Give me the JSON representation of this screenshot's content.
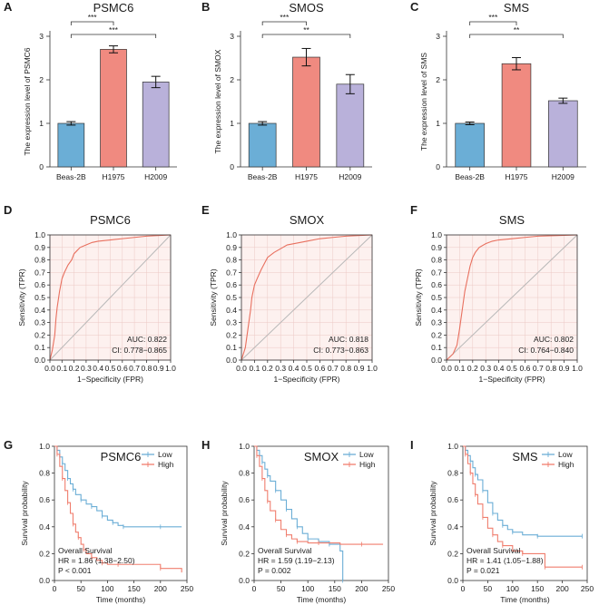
{
  "figure": {
    "panel_labels": [
      "A",
      "B",
      "C",
      "D",
      "E",
      "F",
      "G",
      "H",
      "I"
    ]
  },
  "chart_data": [
    {
      "id": "A",
      "type": "bar",
      "title": "PSMC6",
      "xlabel": "",
      "ylabel": "The expression level of PSMC6",
      "categories": [
        "Beas-2B",
        "H1975",
        "H2009"
      ],
      "values": [
        1.0,
        2.7,
        1.95
      ],
      "errors": [
        0.04,
        0.08,
        0.13
      ],
      "ylim": [
        0,
        3
      ],
      "yticks": [
        "0",
        "1",
        "2",
        "3"
      ],
      "colors": [
        "#6baed6",
        "#f08a80",
        "#b9b1da"
      ],
      "significance": [
        {
          "pair": [
            0,
            1
          ],
          "label": "***"
        },
        {
          "pair": [
            0,
            2
          ],
          "label": "***"
        }
      ]
    },
    {
      "id": "B",
      "type": "bar",
      "title": "SMOS",
      "xlabel": "",
      "ylabel": "The expression level of SMOX",
      "categories": [
        "Beas-2B",
        "H1975",
        "H2009"
      ],
      "values": [
        1.0,
        2.52,
        1.9
      ],
      "errors": [
        0.04,
        0.2,
        0.22
      ],
      "ylim": [
        0,
        3
      ],
      "yticks": [
        "0",
        "1",
        "2",
        "3"
      ],
      "colors": [
        "#6baed6",
        "#f08a80",
        "#b9b1da"
      ],
      "significance": [
        {
          "pair": [
            0,
            1
          ],
          "label": "***"
        },
        {
          "pair": [
            0,
            2
          ],
          "label": "**"
        }
      ]
    },
    {
      "id": "C",
      "type": "bar",
      "title": "SMS",
      "xlabel": "",
      "ylabel": "The expression level of SMS",
      "categories": [
        "Beas-2B",
        "H1975",
        "H2009"
      ],
      "values": [
        1.0,
        2.37,
        1.52
      ],
      "errors": [
        0.03,
        0.14,
        0.06
      ],
      "ylim": [
        0,
        3
      ],
      "yticks": [
        "0",
        "1",
        "2",
        "3"
      ],
      "colors": [
        "#6baed6",
        "#f08a80",
        "#b9b1da"
      ],
      "significance": [
        {
          "pair": [
            0,
            1
          ],
          "label": "***"
        },
        {
          "pair": [
            0,
            2
          ],
          "label": "**"
        }
      ]
    },
    {
      "id": "D",
      "type": "line",
      "subtype": "roc",
      "title": "PSMC6",
      "xlabel": "1−Specificity (FPR)",
      "ylabel": "Sensitivity (TPR)",
      "xlim": [
        0,
        1
      ],
      "ylim": [
        0,
        1
      ],
      "ticks": [
        "0.0",
        "0.1",
        "0.2",
        "0.3",
        "0.4",
        "0.5",
        "0.6",
        "0.7",
        "0.8",
        "0.9",
        "1.0"
      ],
      "auc_text": "AUC: 0.822",
      "ci_text": "CI: 0.778−0.865",
      "x": [
        0,
        0.02,
        0.04,
        0.05,
        0.06,
        0.08,
        0.1,
        0.12,
        0.15,
        0.18,
        0.2,
        0.22,
        0.25,
        0.3,
        0.35,
        0.4,
        0.5,
        0.6,
        0.7,
        0.8,
        1.0
      ],
      "y": [
        0,
        0.08,
        0.2,
        0.33,
        0.42,
        0.55,
        0.65,
        0.7,
        0.76,
        0.8,
        0.85,
        0.87,
        0.9,
        0.92,
        0.94,
        0.95,
        0.96,
        0.97,
        0.98,
        0.99,
        1.0
      ]
    },
    {
      "id": "E",
      "type": "line",
      "subtype": "roc",
      "title": "SMOX",
      "xlabel": "1−Specificity (FPR)",
      "ylabel": "Sensitivity (TPR)",
      "xlim": [
        0,
        1
      ],
      "ylim": [
        0,
        1
      ],
      "ticks": [
        "0.0",
        "0.1",
        "0.2",
        "0.3",
        "0.4",
        "0.5",
        "0.6",
        "0.7",
        "0.8",
        "0.9",
        "1.0"
      ],
      "auc_text": "AUC: 0.818",
      "ci_text": "CI: 0.773−0.863",
      "x": [
        0,
        0.03,
        0.05,
        0.07,
        0.08,
        0.1,
        0.12,
        0.15,
        0.18,
        0.2,
        0.25,
        0.3,
        0.35,
        0.4,
        0.5,
        0.6,
        0.7,
        0.8,
        1.0
      ],
      "y": [
        0,
        0.1,
        0.25,
        0.4,
        0.5,
        0.6,
        0.65,
        0.72,
        0.78,
        0.82,
        0.86,
        0.89,
        0.92,
        0.93,
        0.95,
        0.97,
        0.98,
        0.99,
        1.0
      ]
    },
    {
      "id": "F",
      "type": "line",
      "subtype": "roc",
      "title": "SMS",
      "xlabel": "1−Specificity (FPR)",
      "ylabel": "Sensitivity (TPR)",
      "xlim": [
        0,
        1
      ],
      "ylim": [
        0,
        1
      ],
      "ticks": [
        "0.0",
        "0.1",
        "0.2",
        "0.3",
        "0.4",
        "0.5",
        "0.6",
        "0.7",
        "0.8",
        "0.9",
        "1.0"
      ],
      "auc_text": "AUC: 0.802",
      "ci_text": "CI: 0.764−0.840",
      "x": [
        0,
        0.05,
        0.08,
        0.1,
        0.12,
        0.14,
        0.16,
        0.18,
        0.2,
        0.22,
        0.25,
        0.3,
        0.35,
        0.4,
        0.5,
        0.6,
        0.7,
        0.85,
        1.0
      ],
      "y": [
        0,
        0.05,
        0.12,
        0.25,
        0.4,
        0.55,
        0.65,
        0.75,
        0.82,
        0.86,
        0.9,
        0.93,
        0.95,
        0.96,
        0.97,
        0.98,
        0.99,
        0.995,
        1.0
      ]
    },
    {
      "id": "G",
      "type": "line",
      "subtype": "survival",
      "title": "PSMC6",
      "xlabel": "Time (months)",
      "ylabel": "Survival probability",
      "xlim": [
        0,
        250
      ],
      "ylim": [
        0,
        1
      ],
      "xticks": [
        "0",
        "50",
        "100",
        "150",
        "200",
        "250"
      ],
      "yticks": [
        "0.0",
        "0.2",
        "0.4",
        "0.6",
        "0.8",
        "1.0"
      ],
      "legend": [
        "Low",
        "High"
      ],
      "overall_label": "Overall Survival",
      "hr_text": "HR = 1.86 (1.38−2.50)",
      "p_text": "P < 0.001",
      "series": [
        {
          "name": "Low",
          "color": "#6baed6",
          "x": [
            0,
            5,
            10,
            15,
            20,
            25,
            30,
            35,
            40,
            50,
            60,
            70,
            80,
            90,
            100,
            110,
            120,
            130,
            150,
            200,
            240
          ],
          "y": [
            1.0,
            0.97,
            0.92,
            0.87,
            0.82,
            0.76,
            0.72,
            0.68,
            0.64,
            0.6,
            0.57,
            0.55,
            0.52,
            0.48,
            0.45,
            0.43,
            0.41,
            0.4,
            0.4,
            0.4,
            0.4
          ]
        },
        {
          "name": "High",
          "color": "#f07e6e",
          "x": [
            0,
            5,
            10,
            15,
            20,
            25,
            30,
            35,
            40,
            45,
            50,
            55,
            60,
            70,
            80,
            90,
            100,
            120,
            160,
            200,
            240
          ],
          "y": [
            1.0,
            0.94,
            0.85,
            0.76,
            0.67,
            0.58,
            0.5,
            0.42,
            0.36,
            0.32,
            0.27,
            0.23,
            0.2,
            0.17,
            0.15,
            0.13,
            0.12,
            0.12,
            0.12,
            0.09,
            0.06
          ]
        }
      ]
    },
    {
      "id": "H",
      "type": "line",
      "subtype": "survival",
      "title": "SMOX",
      "xlabel": "Time (months)",
      "ylabel": "Survival probability",
      "xlim": [
        0,
        250
      ],
      "ylim": [
        0,
        1
      ],
      "xticks": [
        "0",
        "50",
        "100",
        "150",
        "200",
        "250"
      ],
      "yticks": [
        "0.0",
        "0.2",
        "0.4",
        "0.6",
        "0.8",
        "1.0"
      ],
      "legend": [
        "Low",
        "High"
      ],
      "overall_label": "Overall Survival",
      "hr_text": "HR = 1.59 (1.19−2.13)",
      "p_text": "P = 0.002",
      "series": [
        {
          "name": "Low",
          "color": "#6baed6",
          "x": [
            0,
            5,
            10,
            15,
            20,
            25,
            30,
            40,
            50,
            60,
            70,
            80,
            90,
            100,
            120,
            140,
            160,
            165
          ],
          "y": [
            1.0,
            0.97,
            0.93,
            0.88,
            0.83,
            0.78,
            0.74,
            0.67,
            0.6,
            0.53,
            0.46,
            0.4,
            0.35,
            0.31,
            0.29,
            0.27,
            0.22,
            0.0
          ]
        },
        {
          "name": "High",
          "color": "#f07e6e",
          "x": [
            0,
            5,
            10,
            15,
            20,
            25,
            30,
            40,
            50,
            60,
            70,
            80,
            100,
            120,
            160,
            200,
            240
          ],
          "y": [
            1.0,
            0.93,
            0.85,
            0.76,
            0.67,
            0.59,
            0.52,
            0.45,
            0.38,
            0.34,
            0.31,
            0.29,
            0.28,
            0.28,
            0.27,
            0.27,
            0.27
          ]
        }
      ]
    },
    {
      "id": "I",
      "type": "line",
      "subtype": "survival",
      "title": "SMS",
      "xlabel": "Time (months)",
      "ylabel": "Survival probability",
      "xlim": [
        0,
        250
      ],
      "ylim": [
        0,
        1
      ],
      "xticks": [
        "0",
        "50",
        "100",
        "150",
        "200",
        "250"
      ],
      "yticks": [
        "0.0",
        "0.2",
        "0.4",
        "0.6",
        "0.8",
        "1.0"
      ],
      "legend": [
        "Low",
        "High"
      ],
      "overall_label": "Overall Survival",
      "hr_text": "HR = 1.41 (1.05−1.88)",
      "p_text": "P = 0.021",
      "series": [
        {
          "name": "Low",
          "color": "#6baed6",
          "x": [
            0,
            5,
            10,
            15,
            20,
            25,
            30,
            40,
            50,
            60,
            70,
            80,
            90,
            100,
            120,
            150,
            200,
            240
          ],
          "y": [
            1.0,
            0.97,
            0.93,
            0.89,
            0.84,
            0.79,
            0.75,
            0.67,
            0.58,
            0.5,
            0.45,
            0.41,
            0.38,
            0.36,
            0.34,
            0.33,
            0.33,
            0.33
          ]
        },
        {
          "name": "High",
          "color": "#f07e6e",
          "x": [
            0,
            5,
            10,
            15,
            20,
            25,
            30,
            40,
            50,
            60,
            70,
            80,
            100,
            120,
            160,
            165,
            200,
            240
          ],
          "y": [
            1.0,
            0.94,
            0.87,
            0.8,
            0.72,
            0.64,
            0.57,
            0.47,
            0.39,
            0.34,
            0.29,
            0.26,
            0.22,
            0.2,
            0.2,
            0.1,
            0.1,
            0.1
          ]
        }
      ]
    }
  ]
}
